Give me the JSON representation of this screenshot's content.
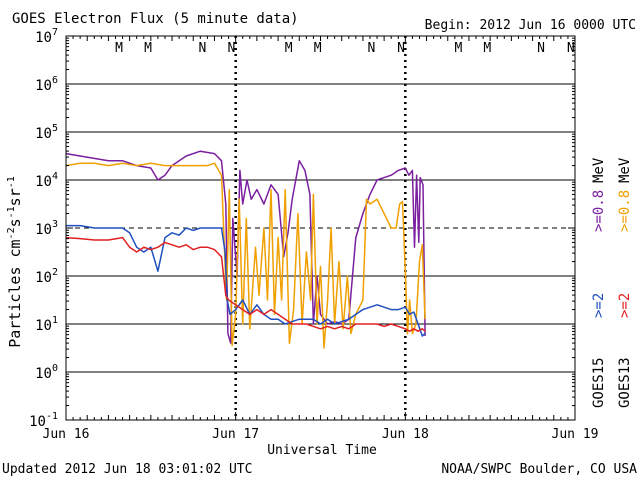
{
  "chart_data": {
    "type": "line",
    "title": "GOES Electron Flux (5 minute data)",
    "begin_label": "Begin: 2012 Jun 16 0000 UTC",
    "xlabel": "Universal Time",
    "ylabel_main": "Particles cm",
    "ylabel_sup1": "-2",
    "ylabel_mid1": "s",
    "ylabel_sup2": "-1",
    "ylabel_mid2": "sr",
    "ylabel_sup3": "-1",
    "yscale": "log",
    "ylim": [
      -1,
      7
    ],
    "xlim_hours": [
      0,
      72
    ],
    "x_ticks": [
      {
        "hour": 0,
        "label": "Jun 16"
      },
      {
        "hour": 24,
        "label": "Jun 17"
      },
      {
        "hour": 48,
        "label": "Jun 18"
      },
      {
        "hour": 72,
        "label": "Jun 19"
      }
    ],
    "y_ticks": [
      {
        "exp": 7,
        "base": "10",
        "sup": "7"
      },
      {
        "exp": 6,
        "base": "10",
        "sup": "6"
      },
      {
        "exp": 5,
        "base": "10",
        "sup": "5"
      },
      {
        "exp": 4,
        "base": "10",
        "sup": "4"
      },
      {
        "exp": 3,
        "base": "10",
        "sup": "3"
      },
      {
        "exp": 2,
        "base": "10",
        "sup": "2"
      },
      {
        "exp": 1,
        "base": "10",
        "sup": "1"
      },
      {
        "exp": 0,
        "base": "10",
        "sup": "0"
      },
      {
        "exp": -1,
        "base": "10",
        "sup": "-1"
      }
    ],
    "threshold_line": {
      "exp": 3,
      "style": "dashed"
    },
    "markers": [
      {
        "hour": 7.5,
        "label": "M",
        "color": "#e02020"
      },
      {
        "hour": 11.6,
        "label": "M",
        "color": "#2050c0"
      },
      {
        "hour": 19.3,
        "label": "N",
        "color": "#e02020"
      },
      {
        "hour": 23.4,
        "label": "N",
        "color": "#2050c0"
      },
      {
        "hour": 31.5,
        "label": "M",
        "color": "#e02020"
      },
      {
        "hour": 35.6,
        "label": "M",
        "color": "#2050c0"
      },
      {
        "hour": 43.2,
        "label": "N",
        "color": "#e02020"
      },
      {
        "hour": 47.4,
        "label": "N",
        "color": "#2050c0"
      },
      {
        "hour": 55.5,
        "label": "M",
        "color": "#e02020"
      },
      {
        "hour": 59.6,
        "label": "M",
        "color": "#2050c0"
      },
      {
        "hour": 67.2,
        "label": "N",
        "color": "#e02020"
      },
      {
        "hour": 71.4,
        "label": "N",
        "color": "#2050c0"
      }
    ],
    "dotted_verticals_hours": [
      24,
      48
    ],
    "legend": {
      "col1_top": ">=0.8",
      "col1_top_color": "#7a1fa0",
      "col1_bottom": ">=2",
      "col1_bottom_color": "#2050c0",
      "col1_sat": "GOES15",
      "col2_top": ">=0.8",
      "col2_top_color": "#f0a000",
      "col2_bottom": ">=2",
      "col2_bottom_color": "#e02020",
      "col2_sat": "GOES13",
      "unit": "MeV"
    },
    "series": [
      {
        "name": "GOES15 >=0.8 MeV",
        "color": "#7a1fa0",
        "points": [
          [
            0,
            4.55
          ],
          [
            2,
            4.5
          ],
          [
            4,
            4.45
          ],
          [
            6,
            4.4
          ],
          [
            8,
            4.4
          ],
          [
            10,
            4.3
          ],
          [
            12,
            4.25
          ],
          [
            13,
            4.0
          ],
          [
            14,
            4.1
          ],
          [
            15,
            4.3
          ],
          [
            17,
            4.5
          ],
          [
            19,
            4.6
          ],
          [
            21,
            4.55
          ],
          [
            22,
            4.4
          ],
          [
            22.6,
            3.5
          ],
          [
            22.9,
            0.8
          ],
          [
            23.3,
            0.6
          ],
          [
            23.6,
            3.2
          ],
          [
            24.2,
            2.0
          ],
          [
            24.6,
            4.2
          ],
          [
            25.0,
            3.5
          ],
          [
            25.6,
            4.0
          ],
          [
            26.2,
            3.6
          ],
          [
            27,
            3.8
          ],
          [
            28,
            3.5
          ],
          [
            29,
            3.9
          ],
          [
            30,
            3.7
          ],
          [
            30.8,
            2.4
          ],
          [
            31.4,
            2.9
          ],
          [
            32.0,
            3.6
          ],
          [
            33,
            4.4
          ],
          [
            33.8,
            4.2
          ],
          [
            34.5,
            3.7
          ],
          [
            35.0,
            1.0
          ],
          [
            35.5,
            2.0
          ],
          [
            36,
            1.2
          ],
          [
            37,
            1.0
          ],
          [
            38,
            1.05
          ],
          [
            39,
            1.0
          ],
          [
            40,
            1.1
          ],
          [
            41,
            2.8
          ],
          [
            42,
            3.3
          ],
          [
            43,
            3.7
          ],
          [
            44,
            4.0
          ],
          [
            45,
            4.05
          ],
          [
            46,
            4.1
          ],
          [
            47,
            4.2
          ],
          [
            48,
            4.25
          ],
          [
            48.5,
            4.1
          ],
          [
            49,
            4.2
          ],
          [
            49.3,
            2.6
          ],
          [
            49.6,
            4.1
          ],
          [
            49.9,
            2.7
          ],
          [
            50.1,
            4.05
          ],
          [
            50.5,
            3.9
          ],
          [
            50.8,
            0.75
          ]
        ]
      },
      {
        "name": "GOES13 >=0.8 MeV",
        "color": "#f0a000",
        "points": [
          [
            0,
            4.3
          ],
          [
            2,
            4.35
          ],
          [
            4,
            4.35
          ],
          [
            6,
            4.3
          ],
          [
            8,
            4.35
          ],
          [
            10,
            4.3
          ],
          [
            12,
            4.35
          ],
          [
            14,
            4.3
          ],
          [
            16,
            4.3
          ],
          [
            18,
            4.3
          ],
          [
            20,
            4.3
          ],
          [
            21,
            4.35
          ],
          [
            22,
            4.1
          ],
          [
            22.7,
            1.5
          ],
          [
            23.1,
            3.8
          ],
          [
            23.5,
            0.55
          ],
          [
            24.0,
            1.2
          ],
          [
            24.5,
            3.6
          ],
          [
            25,
            1.0
          ],
          [
            25.5,
            3.2
          ],
          [
            26,
            0.9
          ],
          [
            26.8,
            2.6
          ],
          [
            27.3,
            1.6
          ],
          [
            28,
            3.0
          ],
          [
            28.5,
            1.5
          ],
          [
            29,
            3.8
          ],
          [
            29.5,
            1.2
          ],
          [
            30,
            2.8
          ],
          [
            30.5,
            1.5
          ],
          [
            31,
            3.8
          ],
          [
            31.6,
            0.6
          ],
          [
            32.2,
            1.3
          ],
          [
            32.8,
            3.3
          ],
          [
            33.4,
            1.0
          ],
          [
            34,
            2.5
          ],
          [
            34.6,
            1.5
          ],
          [
            35,
            3.7
          ],
          [
            35.5,
            1.0
          ],
          [
            36,
            2.2
          ],
          [
            36.5,
            0.5
          ],
          [
            37,
            1.5
          ],
          [
            37.5,
            3.0
          ],
          [
            38,
            1.0
          ],
          [
            38.6,
            2.3
          ],
          [
            39.2,
            0.9
          ],
          [
            39.8,
            2.0
          ],
          [
            40.3,
            0.8
          ],
          [
            41,
            1.2
          ],
          [
            42,
            1.5
          ],
          [
            42.5,
            3.6
          ],
          [
            43,
            3.5
          ],
          [
            44,
            3.6
          ],
          [
            45,
            3.3
          ],
          [
            46,
            3.0
          ],
          [
            46.7,
            3.0
          ],
          [
            47.2,
            3.5
          ],
          [
            47.6,
            3.55
          ],
          [
            48,
            2.1
          ],
          [
            48.3,
            0.8
          ],
          [
            48.6,
            1.5
          ],
          [
            49,
            0.8
          ],
          [
            49.5,
            1.0
          ],
          [
            50,
            2.3
          ],
          [
            50.4,
            2.65
          ],
          [
            50.8,
            1.1
          ]
        ]
      },
      {
        "name": "GOES15 >=2 MeV",
        "color": "#2050c0",
        "points": [
          [
            0,
            3.05
          ],
          [
            2,
            3.05
          ],
          [
            4,
            3.0
          ],
          [
            6,
            3.0
          ],
          [
            8,
            3.0
          ],
          [
            9,
            2.9
          ],
          [
            10,
            2.6
          ],
          [
            11,
            2.5
          ],
          [
            12,
            2.6
          ],
          [
            13,
            2.1
          ],
          [
            14,
            2.8
          ],
          [
            15,
            2.9
          ],
          [
            16,
            2.85
          ],
          [
            17,
            3.0
          ],
          [
            18,
            2.95
          ],
          [
            19,
            3.0
          ],
          [
            20,
            3.0
          ],
          [
            21,
            3.0
          ],
          [
            22,
            3.0
          ],
          [
            22.5,
            2.5
          ],
          [
            22.8,
            1.5
          ],
          [
            23.2,
            1.2
          ],
          [
            24,
            1.3
          ],
          [
            25,
            1.5
          ],
          [
            26,
            1.2
          ],
          [
            27,
            1.4
          ],
          [
            28,
            1.2
          ],
          [
            29,
            1.1
          ],
          [
            30,
            1.1
          ],
          [
            31,
            1.0
          ],
          [
            32,
            1.05
          ],
          [
            33,
            1.1
          ],
          [
            34,
            1.1
          ],
          [
            35,
            1.1
          ],
          [
            36,
            1.0
          ],
          [
            37,
            1.1
          ],
          [
            38,
            1.0
          ],
          [
            39,
            1.05
          ],
          [
            40,
            1.1
          ],
          [
            41,
            1.2
          ],
          [
            42,
            1.3
          ],
          [
            43,
            1.35
          ],
          [
            44,
            1.4
          ],
          [
            45,
            1.35
          ],
          [
            46,
            1.3
          ],
          [
            47,
            1.3
          ],
          [
            48,
            1.35
          ],
          [
            48.6,
            1.2
          ],
          [
            49.2,
            1.25
          ],
          [
            49.8,
            1.0
          ],
          [
            50.4,
            0.75
          ],
          [
            50.8,
            0.8
          ]
        ]
      },
      {
        "name": "GOES13 >=2 MeV",
        "color": "#e02020",
        "points": [
          [
            0,
            2.8
          ],
          [
            2,
            2.78
          ],
          [
            4,
            2.75
          ],
          [
            6,
            2.75
          ],
          [
            8,
            2.8
          ],
          [
            9,
            2.6
          ],
          [
            10,
            2.5
          ],
          [
            11,
            2.6
          ],
          [
            12,
            2.55
          ],
          [
            13,
            2.6
          ],
          [
            14,
            2.7
          ],
          [
            15,
            2.65
          ],
          [
            16,
            2.6
          ],
          [
            17,
            2.65
          ],
          [
            18,
            2.55
          ],
          [
            19,
            2.6
          ],
          [
            20,
            2.6
          ],
          [
            21,
            2.55
          ],
          [
            22,
            2.4
          ],
          [
            22.6,
            1.6
          ],
          [
            23,
            1.5
          ],
          [
            24,
            1.4
          ],
          [
            25,
            1.3
          ],
          [
            26,
            1.2
          ],
          [
            27,
            1.3
          ],
          [
            28,
            1.2
          ],
          [
            29,
            1.3
          ],
          [
            30,
            1.2
          ],
          [
            31,
            1.1
          ],
          [
            32,
            1.0
          ],
          [
            33,
            1.0
          ],
          [
            34,
            1.0
          ],
          [
            35,
            0.95
          ],
          [
            36,
            0.9
          ],
          [
            37,
            0.95
          ],
          [
            38,
            0.9
          ],
          [
            39,
            0.95
          ],
          [
            40,
            0.9
          ],
          [
            41,
            1.0
          ],
          [
            42,
            1.0
          ],
          [
            43,
            1.0
          ],
          [
            44,
            1.0
          ],
          [
            45,
            0.95
          ],
          [
            46,
            1.0
          ],
          [
            47,
            0.95
          ],
          [
            48,
            0.9
          ],
          [
            48.6,
            0.85
          ],
          [
            49.2,
            0.9
          ],
          [
            49.8,
            0.85
          ],
          [
            50.4,
            0.9
          ],
          [
            50.8,
            0.85
          ]
        ]
      }
    ]
  },
  "footer": {
    "updated": "Updated 2012 Jun 18 03:01:02 UTC",
    "source": "NOAA/SWPC Boulder, CO USA"
  }
}
